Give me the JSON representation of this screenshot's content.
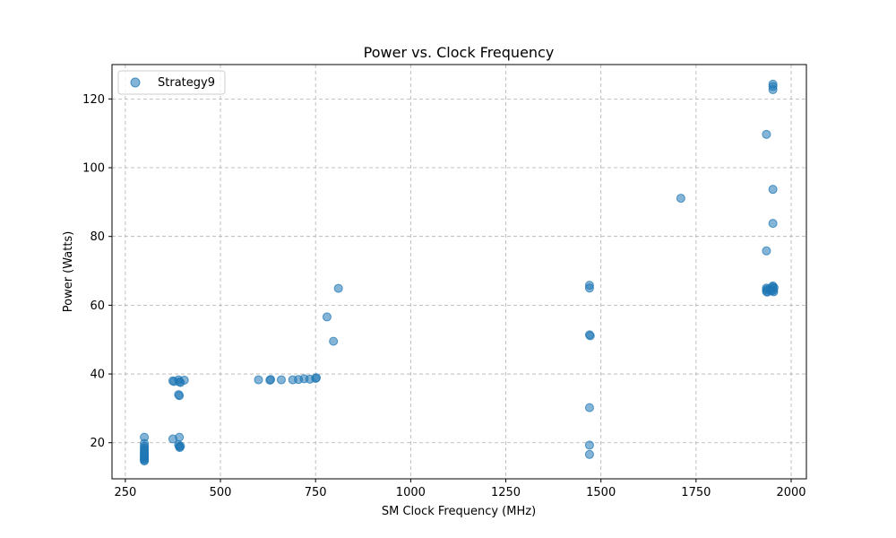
{
  "chart_data": {
    "type": "scatter",
    "title": "Power vs. Clock Frequency",
    "xlabel": "SM Clock Frequency (MHz)",
    "ylabel": "Power (Watts)",
    "xlim": [
      215,
      2040
    ],
    "ylim": [
      9.5,
      130
    ],
    "xticks": [
      250,
      500,
      750,
      1000,
      1250,
      1500,
      1750,
      2000
    ],
    "yticks": [
      20,
      40,
      60,
      80,
      100,
      120
    ],
    "grid": true,
    "legend_position": "top-left",
    "color": "#1f77b4",
    "series": [
      {
        "name": "Strategy9",
        "points": [
          [
            300,
            21.6
          ],
          [
            300,
            19.8
          ],
          [
            300,
            19.0
          ],
          [
            300,
            18.5
          ],
          [
            300,
            18.0
          ],
          [
            300,
            17.5
          ],
          [
            300,
            17.0
          ],
          [
            300,
            16.6
          ],
          [
            300,
            16.2
          ],
          [
            300,
            15.9
          ],
          [
            300,
            15.6
          ],
          [
            300,
            15.3
          ],
          [
            300,
            15.0
          ],
          [
            300,
            14.7
          ],
          [
            375,
            38.0
          ],
          [
            378,
            37.8
          ],
          [
            390,
            38.3
          ],
          [
            392,
            37.7
          ],
          [
            395,
            37.5
          ],
          [
            405,
            38.2
          ],
          [
            390,
            34.0
          ],
          [
            392,
            33.7
          ],
          [
            375,
            21.1
          ],
          [
            392,
            21.6
          ],
          [
            390,
            19.4
          ],
          [
            392,
            18.9
          ],
          [
            393,
            18.6
          ],
          [
            395,
            19.0
          ],
          [
            600,
            38.3
          ],
          [
            630,
            38.2
          ],
          [
            632,
            38.4
          ],
          [
            660,
            38.3
          ],
          [
            690,
            38.3
          ],
          [
            705,
            38.4
          ],
          [
            720,
            38.6
          ],
          [
            735,
            38.5
          ],
          [
            750,
            38.7
          ],
          [
            752,
            38.9
          ],
          [
            780,
            56.6
          ],
          [
            797,
            49.5
          ],
          [
            810,
            64.9
          ],
          [
            1470,
            65.8
          ],
          [
            1470,
            65.0
          ],
          [
            1470,
            51.4
          ],
          [
            1472,
            51.1
          ],
          [
            1470,
            30.2
          ],
          [
            1470,
            19.3
          ],
          [
            1470,
            16.6
          ],
          [
            1710,
            91.1
          ],
          [
            1935,
            109.7
          ],
          [
            1952,
            124.3
          ],
          [
            1952,
            123.6
          ],
          [
            1952,
            122.7
          ],
          [
            1952,
            93.7
          ],
          [
            1952,
            83.8
          ],
          [
            1935,
            75.8
          ],
          [
            1935,
            65.0
          ],
          [
            1935,
            64.5
          ],
          [
            1935,
            64.0
          ],
          [
            1937,
            63.8
          ],
          [
            1940,
            64.7
          ],
          [
            1948,
            64.2
          ],
          [
            1950,
            65.3
          ],
          [
            1952,
            65.6
          ],
          [
            1952,
            64.9
          ],
          [
            1953,
            64.3
          ],
          [
            1954,
            63.9
          ],
          [
            1955,
            65.1
          ]
        ]
      }
    ]
  }
}
